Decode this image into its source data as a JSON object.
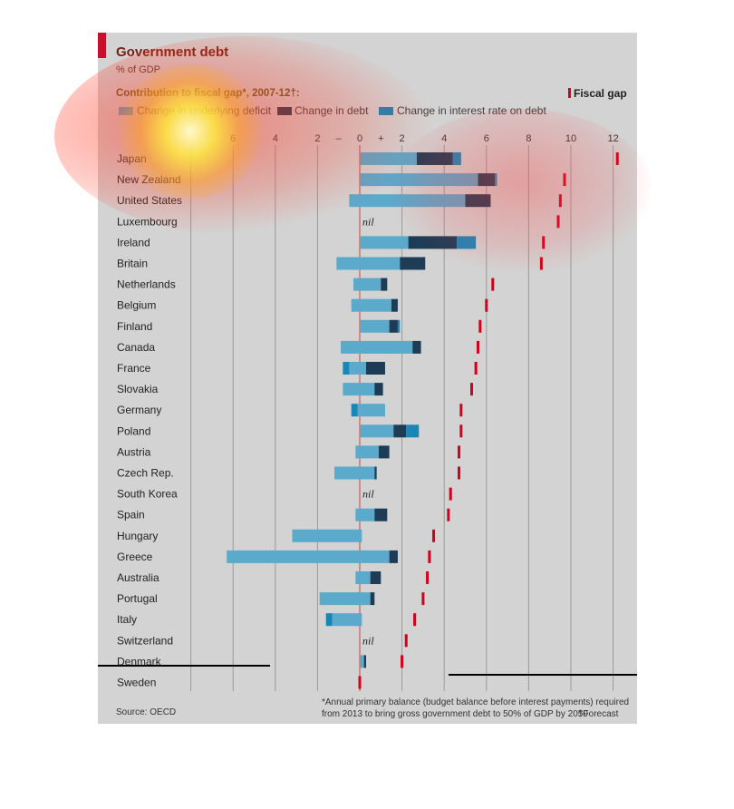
{
  "header": {
    "title": "Government debt",
    "subtitle": "% of GDP",
    "contribution_label": "Contribution to fiscal gap*, 2007-12†:"
  },
  "legend": {
    "items": [
      {
        "label": "Change in underlying deficit",
        "color": "#5ba9cb"
      },
      {
        "label": "Change in debt",
        "color": "#1e3c55"
      },
      {
        "label": "Change in interest rate on debt",
        "color": "#1a86b8"
      }
    ],
    "fiscal_gap_label": "Fiscal gap",
    "fiscal_gap_color": "#d0021b"
  },
  "footer": {
    "source": "Source: OECD",
    "note_line1": "*Annual primary balance (budget balance before interest payments) required",
    "note_line2": "from 2013 to bring gross government debt to 50% of GDP by 2050",
    "note_forecast": "†Forecast"
  },
  "chart_data": {
    "type": "bar",
    "orientation": "horizontal-stacked",
    "x_ticks": [
      "6",
      "4",
      "2",
      "–",
      "0",
      "+",
      "2",
      "4",
      "6",
      "8",
      "10",
      "12"
    ],
    "xlim": [
      -8,
      12.5
    ],
    "nil_label": "nil",
    "series": [
      {
        "name": "Change in underlying deficit",
        "color": "#5ba9cb"
      },
      {
        "name": "Change in debt",
        "color": "#1e3c55"
      },
      {
        "name": "Change in interest rate on debt",
        "color": "#1a86b8"
      }
    ],
    "countries": [
      {
        "name": "Japan",
        "nil": false,
        "neg": [],
        "pos": [
          2.7,
          1.7,
          0.4
        ],
        "gap": 12.2
      },
      {
        "name": "New Zealand",
        "nil": false,
        "neg": [],
        "pos": [
          5.6,
          0.8,
          0.1
        ],
        "gap": 9.7
      },
      {
        "name": "United States",
        "nil": false,
        "neg": [
          0.5
        ],
        "pos": [
          5.0,
          1.2
        ],
        "gap": 9.5
      },
      {
        "name": "Luxembourg",
        "nil": true,
        "neg": [],
        "pos": [],
        "gap": 9.4
      },
      {
        "name": "Ireland",
        "nil": false,
        "neg": [],
        "pos": [
          2.3,
          2.3,
          0.9
        ],
        "gap": 8.7
      },
      {
        "name": "Britain",
        "nil": false,
        "neg": [
          1.1
        ],
        "pos": [
          1.9,
          1.2
        ],
        "gap": 8.6
      },
      {
        "name": "Netherlands",
        "nil": false,
        "neg": [
          0.3
        ],
        "pos": [
          1.0,
          0.3
        ],
        "gap": 6.3
      },
      {
        "name": "Belgium",
        "nil": false,
        "neg": [
          0.4
        ],
        "pos": [
          1.5,
          0.3
        ],
        "gap": 6.0
      },
      {
        "name": "Finland",
        "nil": false,
        "neg": [],
        "pos": [
          1.4,
          0.4,
          0.1
        ],
        "gap": 5.7
      },
      {
        "name": "Canada",
        "nil": false,
        "neg": [
          0.9
        ],
        "pos": [
          2.5,
          0.4
        ],
        "gap": 5.6
      },
      {
        "name": "France",
        "nil": false,
        "neg": [
          0.5,
          0.3
        ],
        "pos": [
          0.3,
          0.9
        ],
        "gap": 5.5
      },
      {
        "name": "Slovakia",
        "nil": false,
        "neg": [
          0.8
        ],
        "pos": [
          0.7,
          0.4
        ],
        "gap": 5.3
      },
      {
        "name": "Germany",
        "nil": false,
        "neg": [
          0.1,
          0.3
        ],
        "pos": [
          1.2
        ],
        "gap": 4.8
      },
      {
        "name": "Poland",
        "nil": false,
        "neg": [],
        "pos": [
          1.6,
          0.6,
          0.6
        ],
        "gap": 4.8
      },
      {
        "name": "Austria",
        "nil": false,
        "neg": [
          0.2
        ],
        "pos": [
          0.9,
          0.5
        ],
        "gap": 4.7
      },
      {
        "name": "Czech Rep.",
        "nil": false,
        "neg": [
          1.2
        ],
        "pos": [
          0.7,
          0.1
        ],
        "gap": 4.7
      },
      {
        "name": "South Korea",
        "nil": true,
        "neg": [],
        "pos": [],
        "gap": 4.3
      },
      {
        "name": "Spain",
        "nil": false,
        "neg": [
          0.2
        ],
        "pos": [
          0.7,
          0.6
        ],
        "gap": 4.2
      },
      {
        "name": "Hungary",
        "nil": false,
        "neg": [
          3.2
        ],
        "pos": [
          0.1
        ],
        "gap": 3.5
      },
      {
        "name": "Greece",
        "nil": false,
        "neg": [
          6.3
        ],
        "pos": [
          1.4,
          0.4
        ],
        "gap": 3.3
      },
      {
        "name": "Australia",
        "nil": false,
        "neg": [
          0.2
        ],
        "pos": [
          0.5,
          0.5
        ],
        "gap": 3.2
      },
      {
        "name": "Portugal",
        "nil": false,
        "neg": [
          1.9
        ],
        "pos": [
          0.5,
          0.2
        ],
        "gap": 3.0
      },
      {
        "name": "Italy",
        "nil": false,
        "neg": [
          1.3,
          0.3
        ],
        "pos": [
          0.1
        ],
        "gap": 2.6
      },
      {
        "name": "Switzerland",
        "nil": true,
        "neg": [],
        "pos": [],
        "gap": 2.2
      },
      {
        "name": "Denmark",
        "nil": false,
        "neg": [],
        "pos": [
          0.2,
          0.1
        ],
        "gap": 2.0
      },
      {
        "name": "Sweden",
        "nil": false,
        "neg": [],
        "pos": [],
        "gap": 0.0
      }
    ]
  }
}
